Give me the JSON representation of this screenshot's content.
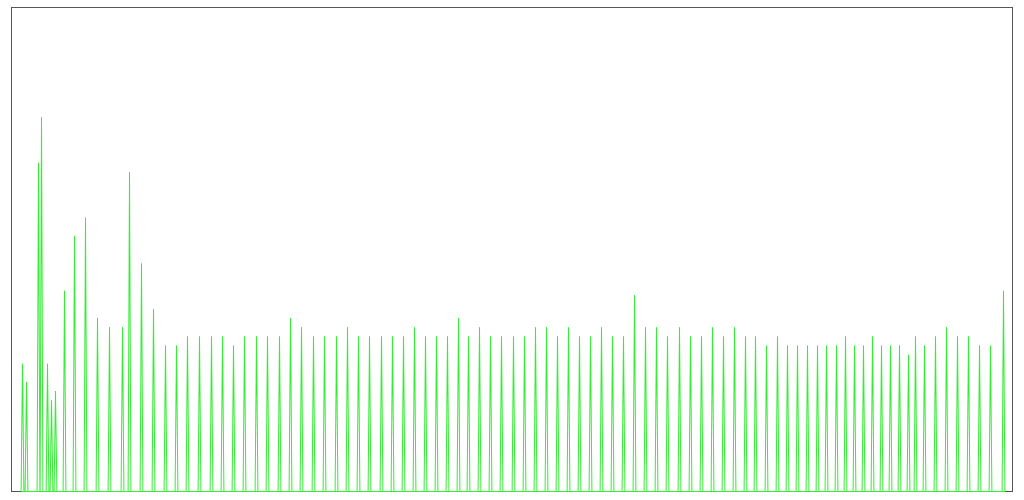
{
  "chart_data": {
    "type": "line",
    "title": "",
    "xlabel": "",
    "ylabel": "",
    "grid": false,
    "legend": "none",
    "line_color": "#33ee33",
    "frame_color": "#555555",
    "series": [
      {
        "spikes": [
          [
            22,
            140
          ],
          [
            26,
            120
          ],
          [
            38,
            360
          ],
          [
            41,
            410
          ],
          [
            47,
            140
          ],
          [
            51,
            100
          ],
          [
            55,
            110
          ],
          [
            64,
            220
          ],
          [
            74,
            280
          ],
          [
            85,
            300
          ],
          [
            97,
            190
          ],
          [
            109,
            180
          ],
          [
            122,
            180
          ],
          [
            129,
            350
          ],
          [
            141,
            250
          ],
          [
            153,
            200
          ],
          [
            165,
            160
          ],
          [
            176,
            160
          ],
          [
            187,
            170
          ],
          [
            199,
            170
          ],
          [
            211,
            170
          ],
          [
            222,
            170
          ],
          [
            233,
            160
          ],
          [
            244,
            170
          ],
          [
            256,
            170
          ],
          [
            267,
            170
          ],
          [
            279,
            170
          ],
          [
            290,
            190
          ],
          [
            301,
            180
          ],
          [
            313,
            170
          ],
          [
            324,
            170
          ],
          [
            336,
            170
          ],
          [
            347,
            180
          ],
          [
            358,
            170
          ],
          [
            369,
            170
          ],
          [
            381,
            170
          ],
          [
            392,
            170
          ],
          [
            403,
            170
          ],
          [
            414,
            180
          ],
          [
            425,
            170
          ],
          [
            436,
            170
          ],
          [
            447,
            170
          ],
          [
            458,
            190
          ],
          [
            468,
            170
          ],
          [
            479,
            180
          ],
          [
            490,
            170
          ],
          [
            501,
            170
          ],
          [
            513,
            170
          ],
          [
            524,
            170
          ],
          [
            535,
            180
          ],
          [
            546,
            180
          ],
          [
            557,
            170
          ],
          [
            568,
            180
          ],
          [
            579,
            170
          ],
          [
            590,
            170
          ],
          [
            601,
            180
          ],
          [
            612,
            170
          ],
          [
            623,
            170
          ],
          [
            634,
            215
          ],
          [
            645,
            180
          ],
          [
            656,
            180
          ],
          [
            667,
            170
          ],
          [
            679,
            180
          ],
          [
            690,
            170
          ],
          [
            701,
            170
          ],
          [
            712,
            180
          ],
          [
            723,
            170
          ],
          [
            734,
            180
          ],
          [
            745,
            170
          ],
          [
            755,
            170
          ],
          [
            766,
            160
          ],
          [
            777,
            170
          ],
          [
            787,
            160
          ],
          [
            797,
            160
          ],
          [
            807,
            160
          ],
          [
            817,
            160
          ],
          [
            826,
            160
          ],
          [
            836,
            160
          ],
          [
            845,
            170
          ],
          [
            854,
            160
          ],
          [
            863,
            160
          ],
          [
            872,
            170
          ],
          [
            881,
            160
          ],
          [
            890,
            160
          ],
          [
            899,
            160
          ],
          [
            908,
            150
          ],
          [
            915,
            170
          ],
          [
            924,
            160
          ],
          [
            935,
            170
          ],
          [
            946,
            180
          ],
          [
            957,
            170
          ],
          [
            968,
            170
          ],
          [
            979,
            160
          ],
          [
            990,
            160
          ],
          [
            1003,
            220
          ]
        ]
      }
    ],
    "xlim": [
      11,
      1012
    ],
    "ylim": [
      0,
      530
    ]
  }
}
